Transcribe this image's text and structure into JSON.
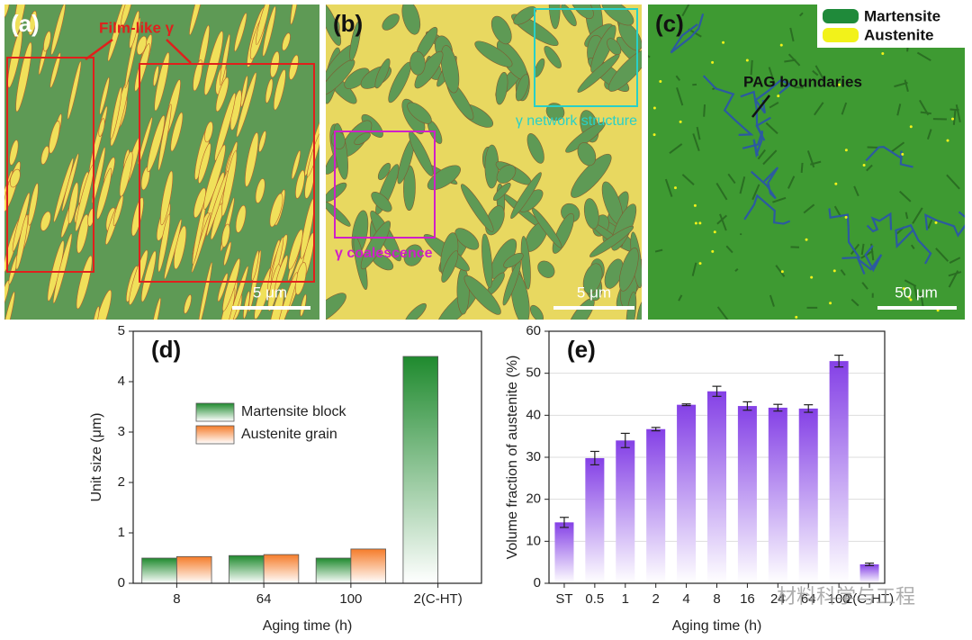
{
  "images": [
    {
      "label": "(a)",
      "annotation": "Film-like γ",
      "scale_bar": "5 μm"
    },
    {
      "label": "(b)",
      "annotations": [
        "γ network structure",
        "γ coalescence"
      ],
      "scale_bar": "5 μm"
    },
    {
      "label": "(c)",
      "legend": [
        "Martensite",
        "Austenite"
      ],
      "annotation": "PAG boundaries",
      "scale_bar": "50 μm"
    }
  ],
  "watermark": "材料科学与工程",
  "chart_data": [
    {
      "type": "bar",
      "panel": "(d)",
      "x_label": "Aging time (h)",
      "y_label": "Unit size (μm)",
      "categories": [
        "8",
        "64",
        "100",
        "2(C-HT)"
      ],
      "series": [
        {
          "name": "Martensite block",
          "color": "#1f8a2e",
          "values": [
            0.5,
            0.55,
            0.5,
            4.5
          ]
        },
        {
          "name": "Austenite grain",
          "color": "#f57c2a",
          "values": [
            0.53,
            0.57,
            0.68,
            null
          ]
        }
      ],
      "ylim": [
        0,
        5
      ],
      "yticks": [
        0,
        1,
        2,
        3,
        4,
        5
      ],
      "grid": false
    },
    {
      "type": "errorbar",
      "panel": "(e)",
      "x_label": "Aging time (h)",
      "y_label": "Volume fraction of austenite (%)",
      "categories": [
        "ST",
        "0.5",
        "1",
        "2",
        "4",
        "8",
        "16",
        "24",
        "64",
        "100",
        "2(C-HT)"
      ],
      "values": [
        14.5,
        29.8,
        34.0,
        36.7,
        42.5,
        45.7,
        42.2,
        41.8,
        41.6,
        52.9,
        4.5
      ],
      "errors": [
        1.2,
        1.6,
        1.7,
        0.4,
        0.2,
        1.2,
        1.0,
        0.8,
        0.9,
        1.4,
        0.3
      ],
      "color": "#8440e6",
      "ylim": [
        0,
        60
      ],
      "yticks": [
        0,
        10,
        20,
        30,
        40,
        50,
        60
      ],
      "grid": true
    }
  ]
}
